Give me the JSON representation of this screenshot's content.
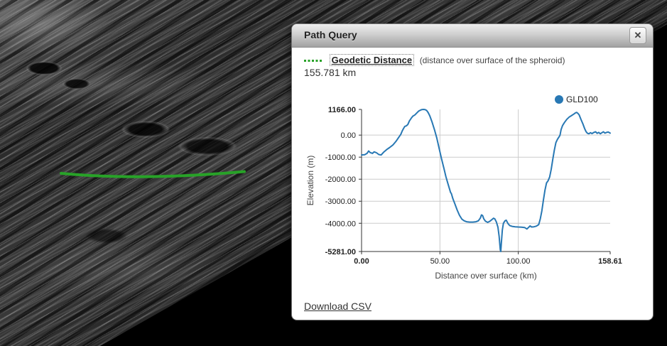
{
  "dialog": {
    "title": "Path Query",
    "close_glyph": "✕",
    "geodetic_label": "Geodetic Distance",
    "geodetic_desc": "(distance over surface of the spheroid)",
    "distance_value": "155.781 km",
    "download_label": "Download CSV"
  },
  "map": {
    "surface": "lunar terrain basemap",
    "path_color": "#28a228"
  },
  "colors": {
    "line_blue": "#2878b4",
    "grid_gray": "#cccccc",
    "axis_dark": "#333333"
  },
  "chart_data": {
    "type": "line",
    "title": "",
    "xlabel": "Distance over surface (km)",
    "ylabel": "Elevation (m)",
    "xlim": [
      0,
      158.61
    ],
    "ylim": [
      -5281,
      1166
    ],
    "grid": true,
    "legend_position": "top-right",
    "legend": {
      "label": "GLD100",
      "color": "#2878b4"
    },
    "x_ticks": [
      {
        "v": 0,
        "label": "0.00",
        "bold": true
      },
      {
        "v": 50,
        "label": "50.00"
      },
      {
        "v": 100,
        "label": "100.00"
      },
      {
        "v": 158.61,
        "label": "158.61",
        "bold": true
      }
    ],
    "y_ticks": [
      {
        "v": 1166,
        "label": "1166.00",
        "bold": true
      },
      {
        "v": 0,
        "label": "0.00"
      },
      {
        "v": -1000,
        "label": "-1000.00"
      },
      {
        "v": -2000,
        "label": "-2000.00"
      },
      {
        "v": -3000,
        "label": "-3000.00"
      },
      {
        "v": -4000,
        "label": "-4000.00"
      },
      {
        "v": -5281,
        "label": "-5281.00",
        "bold": true
      }
    ],
    "x_grid": [
      50,
      100
    ],
    "y_grid": [
      0,
      -1000,
      -2000,
      -3000,
      -4000
    ],
    "series": [
      {
        "name": "GLD100",
        "color": "#2878b4",
        "points": [
          [
            0,
            -900
          ],
          [
            2,
            -890
          ],
          [
            3.5,
            -830
          ],
          [
            4.5,
            -720
          ],
          [
            5.5,
            -790
          ],
          [
            7,
            -830
          ],
          [
            8,
            -760
          ],
          [
            9.5,
            -800
          ],
          [
            11,
            -880
          ],
          [
            12.5,
            -900
          ],
          [
            14,
            -780
          ],
          [
            16,
            -660
          ],
          [
            18,
            -560
          ],
          [
            20,
            -450
          ],
          [
            22,
            -280
          ],
          [
            23.5,
            -120
          ],
          [
            25,
            30
          ],
          [
            26,
            200
          ],
          [
            26.8,
            300
          ],
          [
            27.6,
            395
          ],
          [
            28.6,
            420
          ],
          [
            29.5,
            480
          ],
          [
            30.5,
            640
          ],
          [
            31.8,
            780
          ],
          [
            32.7,
            860
          ],
          [
            34,
            915
          ],
          [
            35.2,
            1000
          ],
          [
            36.4,
            1090
          ],
          [
            37.5,
            1130
          ],
          [
            38.5,
            1160
          ],
          [
            39.5,
            1166
          ],
          [
            40.5,
            1155
          ],
          [
            41.5,
            1120
          ],
          [
            42.5,
            1020
          ],
          [
            43.5,
            880
          ],
          [
            45,
            590
          ],
          [
            46.5,
            250
          ],
          [
            48,
            -130
          ],
          [
            49.5,
            -600
          ],
          [
            51,
            -1060
          ],
          [
            52.5,
            -1500
          ],
          [
            53.8,
            -1880
          ],
          [
            55,
            -2180
          ],
          [
            56,
            -2420
          ],
          [
            56.8,
            -2600
          ],
          [
            57.3,
            -2650
          ],
          [
            58.3,
            -2890
          ],
          [
            59.5,
            -3110
          ],
          [
            61,
            -3400
          ],
          [
            62.5,
            -3640
          ],
          [
            64,
            -3810
          ],
          [
            65.5,
            -3890
          ],
          [
            67,
            -3930
          ],
          [
            69,
            -3945
          ],
          [
            71,
            -3945
          ],
          [
            73,
            -3930
          ],
          [
            74.5,
            -3890
          ],
          [
            75.8,
            -3760
          ],
          [
            76.5,
            -3620
          ],
          [
            77.2,
            -3650
          ],
          [
            78,
            -3800
          ],
          [
            79,
            -3900
          ],
          [
            80.5,
            -3960
          ],
          [
            82,
            -3900
          ],
          [
            83.2,
            -3830
          ],
          [
            84.2,
            -3770
          ],
          [
            85,
            -3800
          ],
          [
            86,
            -3940
          ],
          [
            87,
            -4180
          ],
          [
            87.8,
            -4600
          ],
          [
            88.5,
            -5200
          ],
          [
            88.8,
            -5281
          ],
          [
            89.2,
            -4900
          ],
          [
            89.8,
            -4300
          ],
          [
            90.5,
            -4000
          ],
          [
            91.5,
            -3890
          ],
          [
            92.3,
            -3860
          ],
          [
            93.5,
            -4020
          ],
          [
            94.5,
            -4100
          ],
          [
            96,
            -4140
          ],
          [
            98,
            -4160
          ],
          [
            100,
            -4170
          ],
          [
            102,
            -4175
          ],
          [
            104,
            -4190
          ],
          [
            105.5,
            -4260
          ],
          [
            106.5,
            -4190
          ],
          [
            107.5,
            -4120
          ],
          [
            108.5,
            -4170
          ],
          [
            110,
            -4160
          ],
          [
            111.5,
            -4130
          ],
          [
            113,
            -4060
          ],
          [
            114,
            -3800
          ],
          [
            115,
            -3440
          ],
          [
            116,
            -2950
          ],
          [
            117,
            -2500
          ],
          [
            118,
            -2170
          ],
          [
            119,
            -2070
          ],
          [
            120,
            -1900
          ],
          [
            121,
            -1550
          ],
          [
            122,
            -1100
          ],
          [
            123,
            -680
          ],
          [
            124,
            -340
          ],
          [
            125,
            -190
          ],
          [
            126,
            -80
          ],
          [
            126.6,
            0
          ],
          [
            127.3,
            250
          ],
          [
            128.2,
            430
          ],
          [
            129.5,
            580
          ],
          [
            131,
            720
          ],
          [
            132.5,
            820
          ],
          [
            134,
            890
          ],
          [
            135.5,
            960
          ],
          [
            136.5,
            1010
          ],
          [
            137.2,
            1030
          ],
          [
            138,
            990
          ],
          [
            138.8,
            920
          ],
          [
            140,
            710
          ],
          [
            141.2,
            510
          ],
          [
            142.3,
            300
          ],
          [
            143.2,
            160
          ],
          [
            144,
            90
          ],
          [
            145,
            60
          ],
          [
            146,
            110
          ],
          [
            147,
            70
          ],
          [
            148.2,
            120
          ],
          [
            149.3,
            150
          ],
          [
            150.3,
            80
          ],
          [
            151.3,
            120
          ],
          [
            152.3,
            60
          ],
          [
            153.3,
            110
          ],
          [
            154.3,
            150
          ],
          [
            155.3,
            90
          ],
          [
            156.3,
            120
          ],
          [
            157.3,
            140
          ],
          [
            158.61,
            90
          ]
        ]
      }
    ]
  }
}
